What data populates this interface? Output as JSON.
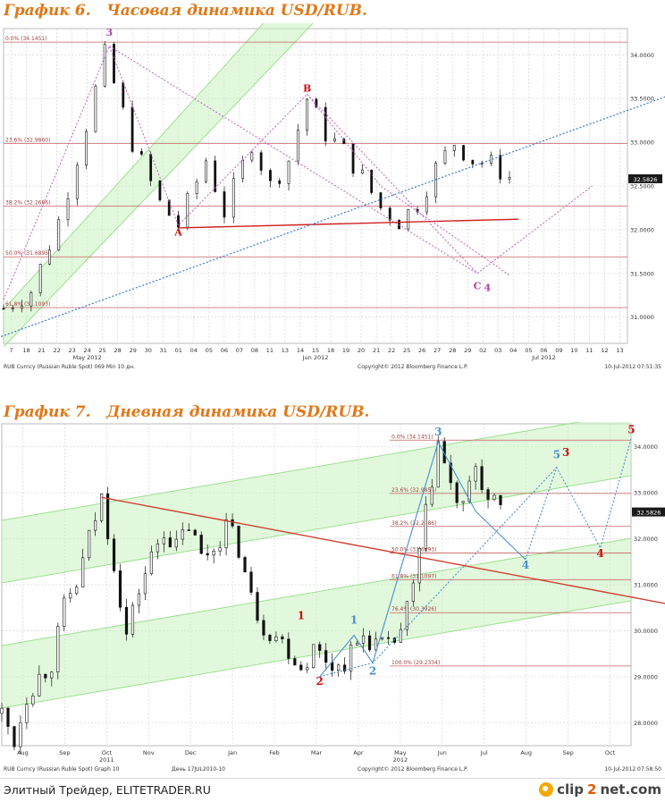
{
  "page": {
    "section_titles": [
      "График 6.   Часовая динамика USD/RUB.",
      "График 7.   Дневная динамика USD/RUB."
    ],
    "footer_text": "Элитный Трейдер, ELITETRADER.RU",
    "footer_logo": {
      "pre": "clip",
      "num": "2",
      "post": "net.com"
    }
  },
  "chart_data": [
    {
      "type": "candlestick",
      "title": "График 6.   Часовая динамика USD/RUB.",
      "ylim": [
        30.7,
        34.3
      ],
      "yticks": [
        {
          "v": 34.0,
          "t": "34.0000"
        },
        {
          "v": 33.5,
          "t": "33.5000"
        },
        {
          "v": 33.0,
          "t": "33.0000"
        },
        {
          "v": 32.5,
          "t": "32.5000"
        },
        {
          "v": 32.0,
          "t": "32.0000"
        },
        {
          "v": 31.5,
          "t": "31.5000"
        },
        {
          "v": 31.0,
          "t": "31.0000"
        }
      ],
      "last_price": {
        "label": "32.5826",
        "value": 32.5826
      },
      "x_ticks": [
        "7",
        "18",
        "21",
        "22",
        "23",
        "24",
        "25",
        "28",
        "29",
        "30",
        "31",
        "01",
        "04",
        "05",
        "06",
        "07",
        "08",
        "11",
        "13",
        "14",
        "15",
        "18",
        "19",
        "20",
        "21",
        "22",
        "25",
        "26",
        "27",
        "28",
        "29",
        "02",
        "03",
        "04",
        "05",
        "06",
        "09",
        "10",
        "11",
        "12",
        "13"
      ],
      "x_month_labels": [
        {
          "i": 5,
          "t": "May 2012"
        },
        {
          "i": 20,
          "t": "Jun 2012"
        },
        {
          "i": 35,
          "t": "Jul 2012"
        }
      ],
      "path_points": [
        [
          0,
          31.1
        ],
        [
          3,
          31.3
        ],
        [
          6,
          32.1
        ],
        [
          9,
          33.2
        ],
        [
          11,
          34.0
        ],
        [
          14,
          33.0
        ],
        [
          17,
          32.3
        ],
        [
          19,
          32.05
        ],
        [
          22,
          32.8
        ],
        [
          24,
          32.2
        ],
        [
          27,
          33.0
        ],
        [
          29,
          32.5
        ],
        [
          31,
          32.8
        ],
        [
          33,
          33.5
        ],
        [
          35,
          33.1
        ],
        [
          37,
          32.9
        ],
        [
          39,
          32.6
        ],
        [
          41,
          32.25
        ],
        [
          43,
          32.1
        ],
        [
          45,
          32.3
        ],
        [
          47,
          32.7
        ],
        [
          49,
          33.0
        ],
        [
          51,
          32.8
        ],
        [
          53,
          32.75
        ],
        [
          55,
          32.6
        ]
      ],
      "x_count": 56,
      "fib_levels": [
        {
          "label": "0.0% (34.1451)",
          "value": 34.1451
        },
        {
          "label": "23.6% (32.9860)",
          "value": 32.986
        },
        {
          "label": "38.2% (32.2686)",
          "value": 32.2686
        },
        {
          "label": "50.0% (31.6895)",
          "value": 31.6895
        },
        {
          "label": "61.8% (31.1093)",
          "value": 31.1093
        }
      ],
      "extra_level": {
        "value": 32.02
      },
      "wave_labels": [
        {
          "t": "3",
          "x": 11.5,
          "y": 34.22,
          "color": "#b040b0"
        },
        {
          "t": "A",
          "x": 19,
          "y": 31.93,
          "color": "#c81010"
        },
        {
          "t": "B",
          "x": 33,
          "y": 33.58,
          "color": "#c81010"
        },
        {
          "t": "C",
          "x": 51.5,
          "y": 31.32,
          "color": "#b040b0"
        },
        {
          "t": "4",
          "x": 52.6,
          "y": 31.3,
          "color": "#b040b0"
        }
      ],
      "footer_left": "RUB Curncy (Russian Ruble Spot) 069 Min 10 дн.",
      "footer_center": "Copyright© 2012 Bloomberg Finance L.P.",
      "footer_right": "10-Jul-2012 07:51:35"
    },
    {
      "type": "candlestick",
      "title": "График 7.   Дневная динамика USD/RUB.",
      "ylim": [
        27.5,
        34.5
      ],
      "yticks": [
        {
          "v": 34.0,
          "t": "34.0000"
        },
        {
          "v": 33.0,
          "t": "33.0000"
        },
        {
          "v": 32.0,
          "t": "32.0000"
        },
        {
          "v": 31.0,
          "t": "31.0000"
        },
        {
          "v": 30.0,
          "t": "30.0000"
        },
        {
          "v": 29.0,
          "t": "29.0000"
        },
        {
          "v": 28.0,
          "t": "28.0000"
        }
      ],
      "last_price": {
        "label": "32.5826",
        "value": 32.5826
      },
      "x_ticks": [
        "Aug",
        "Sep",
        "Oct",
        "Nov",
        "Dec",
        "Jan",
        "Feb",
        "Mar",
        "Apr",
        "May",
        "Jun",
        "Jul",
        "Aug",
        "Sep",
        "Oct"
      ],
      "x_year_labels": [
        {
          "i": 2,
          "t": "2011"
        },
        {
          "i": 9,
          "t": "2012"
        }
      ],
      "path_points": [
        [
          0,
          28.2
        ],
        [
          2,
          27.6
        ],
        [
          4,
          28.6
        ],
        [
          6,
          29.0
        ],
        [
          8,
          29.3
        ],
        [
          10,
          30.5
        ],
        [
          12,
          31.0
        ],
        [
          14,
          32.0
        ],
        [
          16,
          32.9
        ],
        [
          18,
          31.5
        ],
        [
          20,
          29.9
        ],
        [
          22,
          30.9
        ],
        [
          24,
          31.6
        ],
        [
          26,
          32.2
        ],
        [
          28,
          31.8
        ],
        [
          30,
          32.3
        ],
        [
          32,
          31.6
        ],
        [
          34,
          31.8
        ],
        [
          36,
          32.3
        ],
        [
          38,
          31.8
        ],
        [
          40,
          30.7
        ],
        [
          42,
          30.1
        ],
        [
          44,
          29.9
        ],
        [
          46,
          29.6
        ],
        [
          48,
          29.2
        ],
        [
          50,
          29.6
        ],
        [
          52,
          29.4
        ],
        [
          54,
          29.2
        ],
        [
          56,
          29.5
        ],
        [
          58,
          29.9
        ],
        [
          60,
          29.7
        ],
        [
          62,
          29.6
        ],
        [
          64,
          30.0
        ],
        [
          66,
          30.9
        ],
        [
          68,
          32.5
        ],
        [
          70,
          34.1
        ],
        [
          72,
          33.1
        ],
        [
          74,
          32.6
        ],
        [
          76,
          33.6
        ],
        [
          78,
          32.8
        ],
        [
          80,
          32.6
        ]
      ],
      "x_count": 81,
      "fib_levels": [
        {
          "label": "0.0% (34.1451)",
          "value": 34.1451
        },
        {
          "label": "23.6% (32.9855)",
          "value": 32.9855
        },
        {
          "label": "38.2% (32.2686)",
          "value": 32.2686
        },
        {
          "label": "50.0% (31.6893)",
          "value": 31.6893
        },
        {
          "label": "61.8% (31.1097)",
          "value": 31.1097
        },
        {
          "label": "76.4% (30.3926)",
          "value": 30.3926
        },
        {
          "label": "100.0% (29.2334)",
          "value": 29.2334
        }
      ],
      "wave_labels": [
        {
          "t": "1",
          "x": 48,
          "y": 30.25,
          "color": "#c81010"
        },
        {
          "t": "2",
          "x": 51,
          "y": 28.82,
          "color": "#c81010"
        },
        {
          "t": "1",
          "x": 56.5,
          "y": 30.15,
          "color": "#4a8ed0"
        },
        {
          "t": "2",
          "x": 59.5,
          "y": 29.05,
          "color": "#4a8ed0"
        },
        {
          "t": "3",
          "x": 70,
          "y": 34.25,
          "color": "#4a8ed0"
        },
        {
          "t": "4",
          "x": 84,
          "y": 31.35,
          "color": "#4a8ed0"
        },
        {
          "t": "5",
          "x": 89,
          "y": 33.75,
          "color": "#4a8ed0"
        },
        {
          "t": "3",
          "x": 90.5,
          "y": 33.8,
          "color": "#c81010"
        },
        {
          "t": "4",
          "x": 96,
          "y": 31.6,
          "color": "#c81010"
        },
        {
          "t": "5",
          "x": 101,
          "y": 34.3,
          "color": "#c81010"
        }
      ],
      "footer_left": "RUB Curncy (Russian Ruble Spot) Graph 10",
      "footer_mid": "День 17JUL2010-10",
      "footer_center": "Copyright© 2012 Bloomberg Finance L.P.",
      "footer_right": "10-Jul-2012 07:58:50"
    }
  ]
}
